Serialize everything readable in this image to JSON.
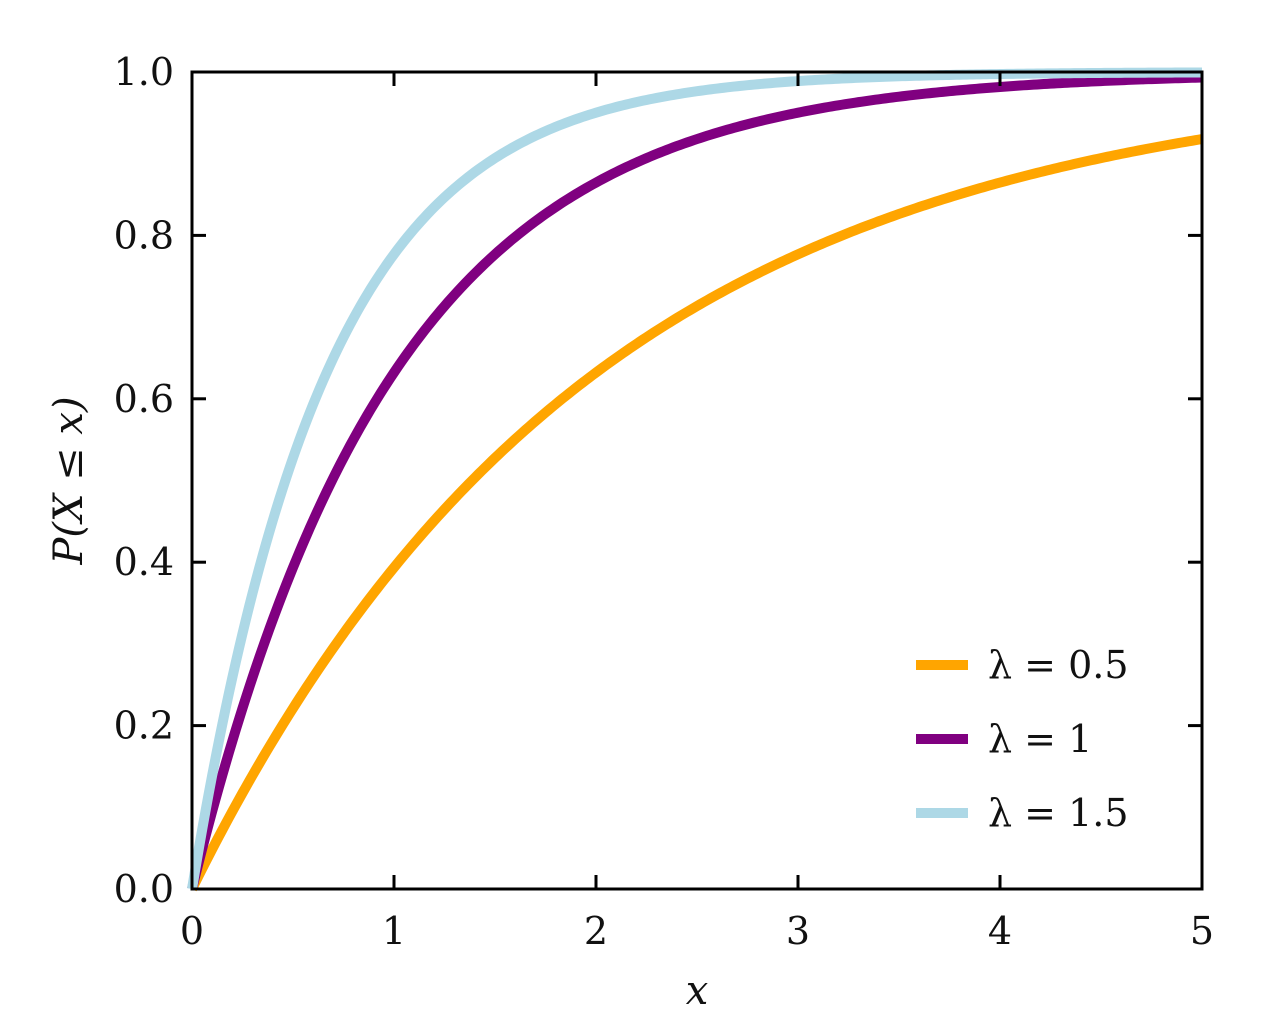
{
  "chart_data": {
    "type": "line",
    "function": "1 - exp(-lambda*x)",
    "xlabel": "x",
    "ylabel": "P(X ≤ x)",
    "xlim": [
      0,
      5
    ],
    "ylim": [
      0,
      1
    ],
    "xticks": [
      0,
      1,
      2,
      3,
      4,
      5
    ],
    "xtick_labels": [
      "0",
      "1",
      "2",
      "3",
      "4",
      "5"
    ],
    "yticks": [
      0,
      0.2,
      0.4,
      0.6,
      0.8,
      1.0
    ],
    "ytick_labels": [
      "0.0",
      "0.2",
      "0.4",
      "0.6",
      "0.8",
      "1.0"
    ],
    "grid": false,
    "legend_position": "lower-right",
    "series": [
      {
        "name": "λ = 0.5",
        "lambda": 0.5,
        "color": "#FFA500"
      },
      {
        "name": "λ = 1",
        "lambda": 1,
        "color": "#800080"
      },
      {
        "name": "λ = 1.5",
        "lambda": 1.5,
        "color": "#ADD8E6"
      }
    ]
  }
}
